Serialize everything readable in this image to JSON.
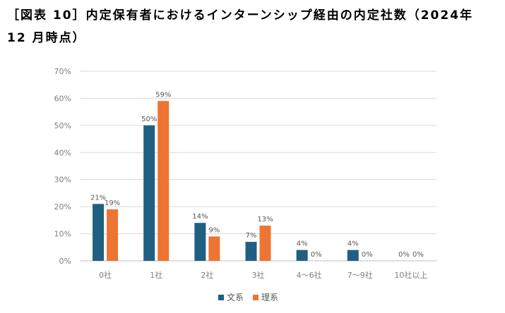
{
  "chart_data": {
    "type": "bar",
    "title": "［図表 10］内定保有者におけるインターンシップ経由の内定社数（2024年 12 月時点）",
    "categories": [
      "0社",
      "1社",
      "2社",
      "3社",
      "4～6社",
      "7～9社",
      "10社以上"
    ],
    "series": [
      {
        "name": "文系",
        "color": "#1f5f82",
        "values": [
          21,
          50,
          14,
          7,
          4,
          4,
          0
        ],
        "labels": [
          "21%",
          "50%",
          "14%",
          "7%",
          "4%",
          "4%",
          "0%"
        ]
      },
      {
        "name": "理系",
        "color": "#ee7434",
        "values": [
          19,
          59,
          9,
          13,
          0,
          0,
          0
        ],
        "labels": [
          "19%",
          "59%",
          "9%",
          "13%",
          "0%",
          "0%",
          "0%"
        ]
      }
    ],
    "ylim": [
      0,
      70
    ],
    "yticks": [
      "0%",
      "10%",
      "20%",
      "30%",
      "40%",
      "50%",
      "60%",
      "70%"
    ],
    "ytick_values": [
      0,
      10,
      20,
      30,
      40,
      50,
      60,
      70
    ],
    "grid": true,
    "legend_position": "bottom"
  }
}
